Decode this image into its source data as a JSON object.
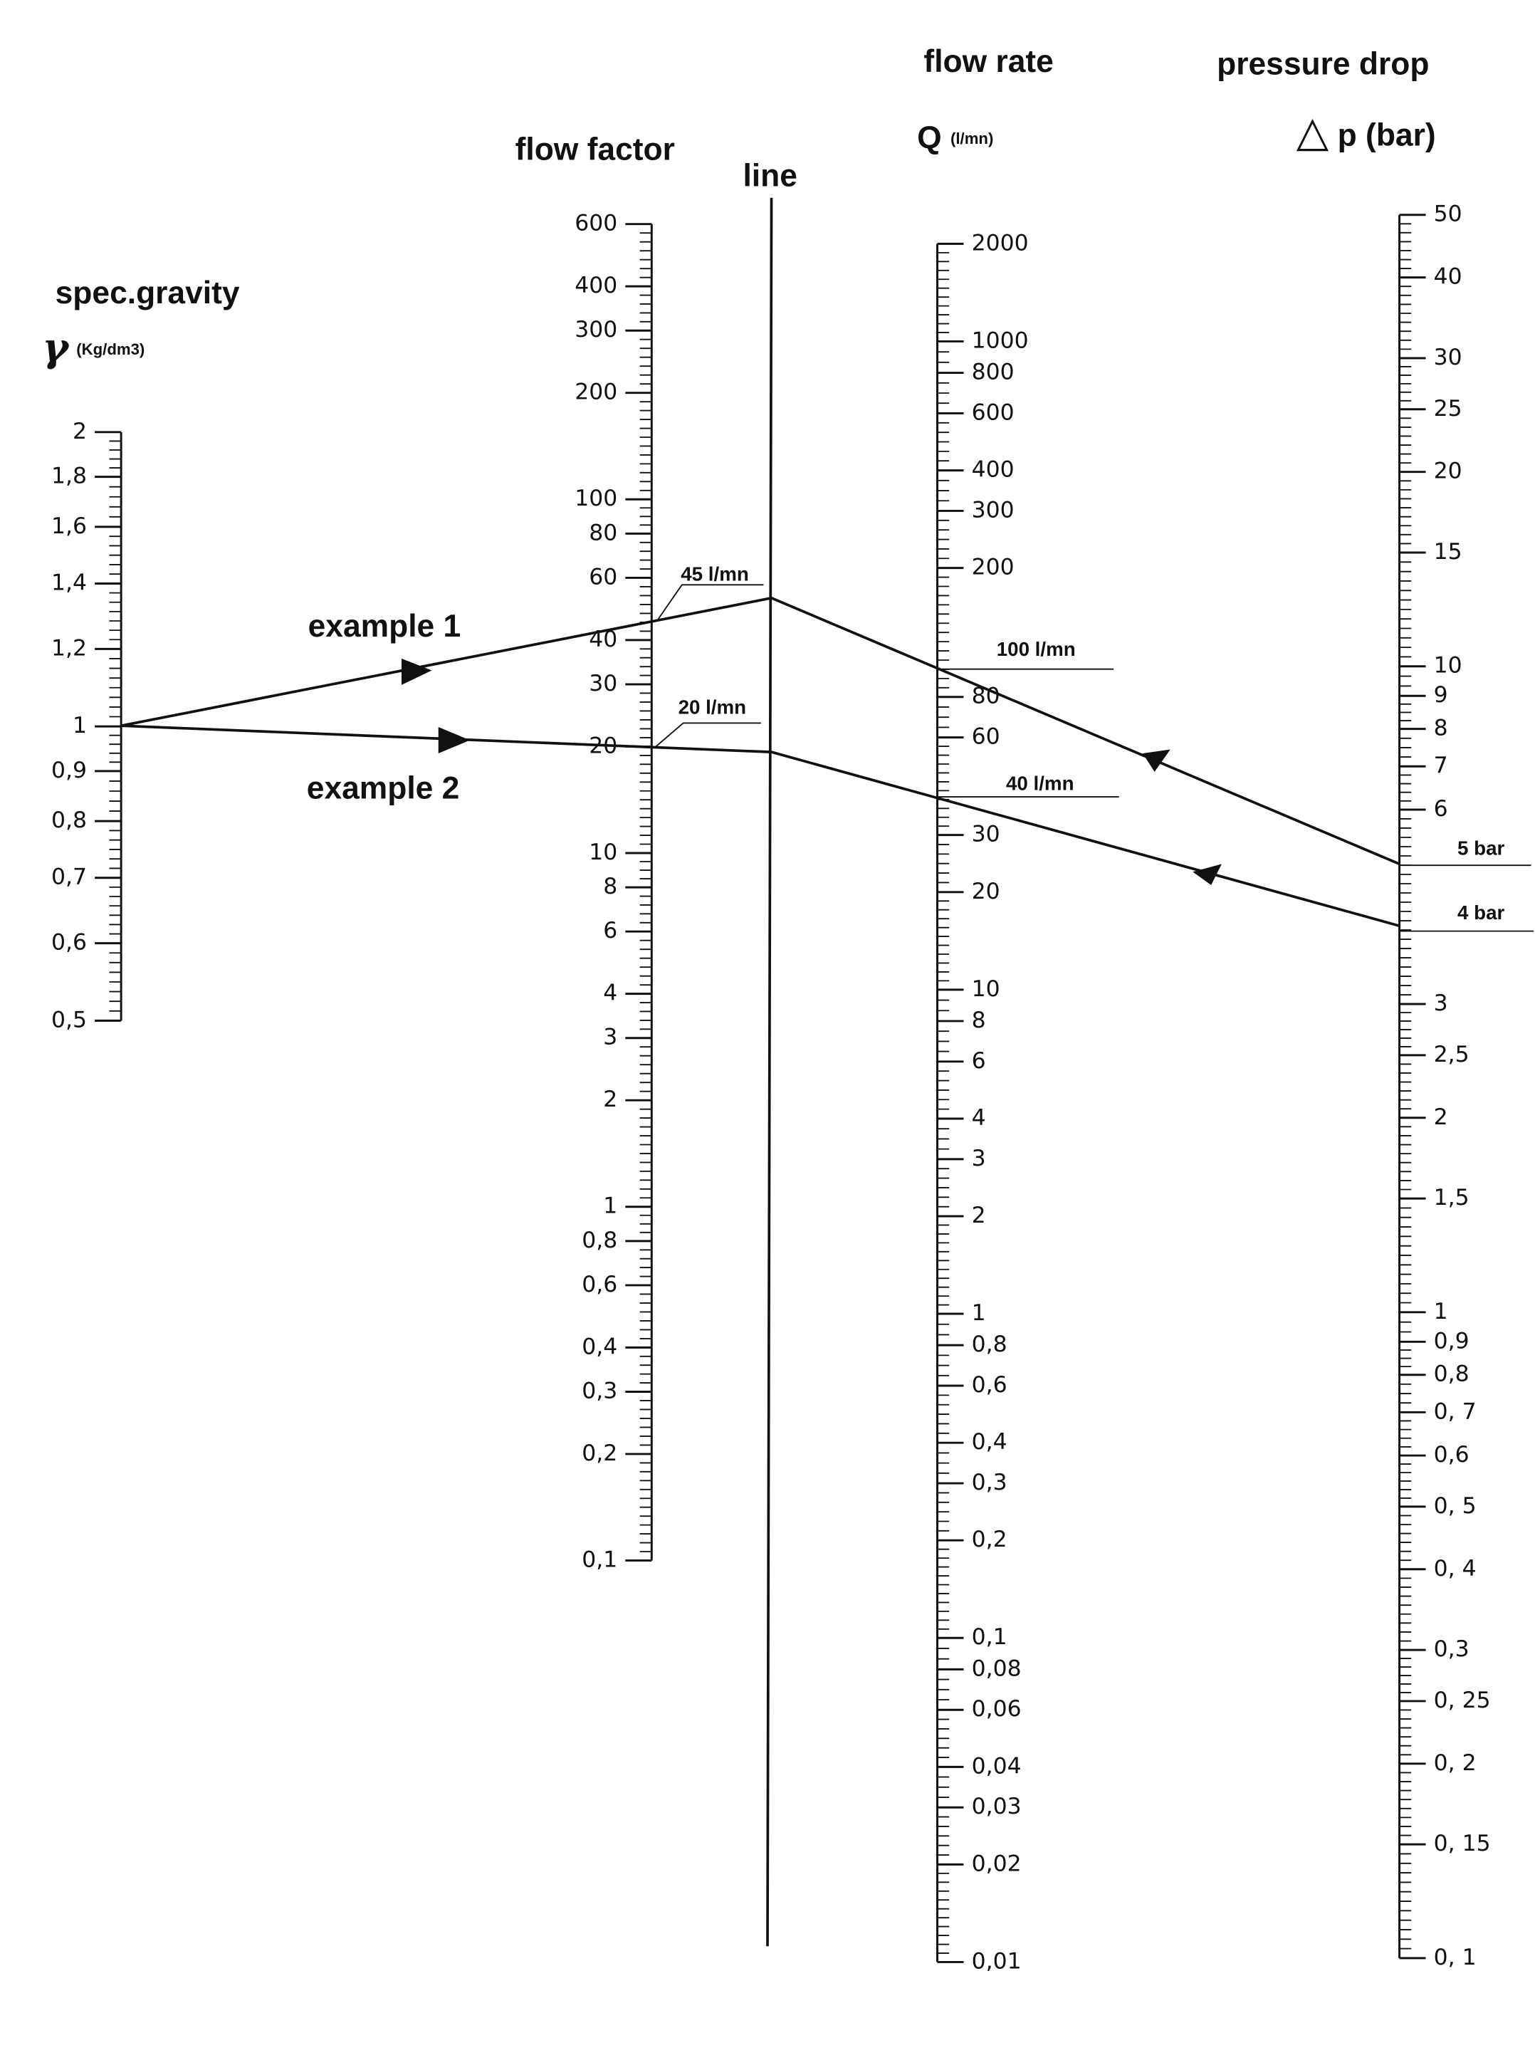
{
  "axes": [
    {
      "title": "spec.gravity",
      "symbol": "γ",
      "unit": "(Kg/dm3)",
      "ticks": [
        2,
        {
          "value": 1.8,
          "label": "1,8"
        },
        {
          "value": 1.6,
          "label": "1,6"
        },
        {
          "value": 1.4,
          "label": "1,4"
        },
        {
          "value": 1.2,
          "label": "1,2"
        },
        1,
        {
          "value": 0.9,
          "label": "0,9"
        },
        {
          "value": 0.8,
          "label": "0,8"
        },
        {
          "value": 0.7,
          "label": "0,7"
        },
        {
          "value": 0.6,
          "label": "0,6"
        },
        {
          "value": 0.5,
          "label": "0,5"
        }
      ]
    },
    {
      "title": "flow factor",
      "ticks": [
        600,
        400,
        300,
        200,
        100,
        80,
        60,
        40,
        30,
        20,
        10,
        8,
        6,
        4,
        3,
        2,
        1,
        {
          "value": 0.8,
          "label": "0,8"
        },
        {
          "value": 0.6,
          "label": "0,6"
        },
        {
          "value": 0.4,
          "label": "0,4"
        },
        {
          "value": 0.3,
          "label": "0,3"
        },
        {
          "value": 0.2,
          "label": "0,2"
        },
        {
          "value": 0.1,
          "label": "0,1"
        }
      ]
    },
    {
      "title": "flow rate",
      "symbol": "Q",
      "unit": "(l/mn)",
      "ticks": [
        2000,
        1000,
        800,
        600,
        400,
        300,
        200,
        80,
        60,
        30,
        20,
        10,
        8,
        6,
        4,
        3,
        2,
        1,
        {
          "value": 0.8,
          "label": "0,8"
        },
        {
          "value": 0.6,
          "label": "0,6"
        },
        {
          "value": 0.4,
          "label": "0,4"
        },
        {
          "value": 0.3,
          "label": "0,3"
        },
        {
          "value": 0.2,
          "label": "0,2"
        },
        {
          "value": 0.1,
          "label": "0,1"
        },
        {
          "value": 0.08,
          "label": "0,08"
        },
        {
          "value": 0.06,
          "label": "0,06"
        },
        {
          "value": 0.04,
          "label": "0,04"
        },
        {
          "value": 0.03,
          "label": "0,03"
        },
        {
          "value": 0.02,
          "label": "0,02"
        },
        {
          "value": 0.01,
          "label": "0,01"
        }
      ]
    },
    {
      "title": "pressure drop",
      "symbol": "△",
      "unit": "p (bar)",
      "ticks": [
        50,
        40,
        30,
        25,
        20,
        15,
        10,
        9,
        8,
        7,
        6,
        3,
        {
          "value": 2.5,
          "label": "2,5"
        },
        2,
        {
          "value": 1.5,
          "label": "1,5"
        },
        1,
        {
          "value": 0.9,
          "label": "0,9"
        },
        {
          "value": 0.8,
          "label": "0,8"
        },
        {
          "value": 0.7,
          "label": "0, 7"
        },
        {
          "value": 0.6,
          "label": "0,6"
        },
        {
          "value": 0.5,
          "label": "0, 5"
        },
        {
          "value": 0.4,
          "label": "0, 4"
        },
        {
          "value": 0.3,
          "label": "0,3"
        },
        {
          "value": 0.25,
          "label": "0, 25"
        },
        {
          "value": 0.2,
          "label": "0, 2"
        },
        {
          "value": 0.15,
          "label": "0, 15"
        },
        {
          "value": 0.1,
          "label": "0, 1"
        }
      ]
    }
  ],
  "line_label": "line",
  "examples": [
    {
      "label": "example 1",
      "annotations": [
        "45 l/mn",
        "100 l/mn",
        "5 bar"
      ]
    },
    {
      "label": "example 2",
      "annotations": [
        "20 l/mn",
        "40 l/mn",
        "4 bar"
      ]
    }
  ]
}
